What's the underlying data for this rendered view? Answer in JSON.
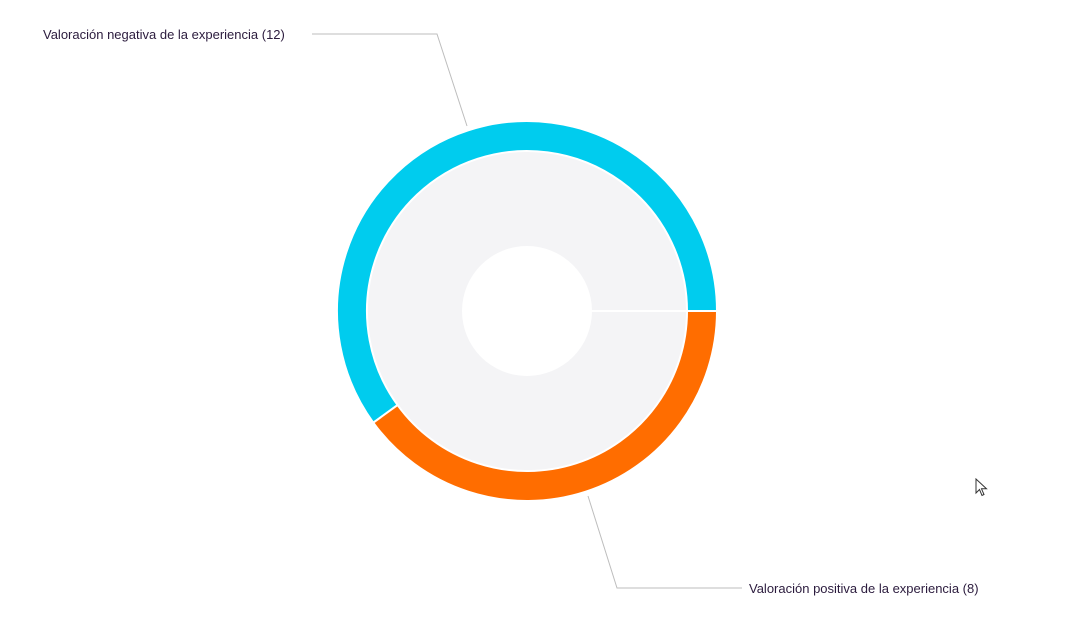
{
  "chart_data": {
    "type": "pie",
    "variant": "donut",
    "title": "",
    "slices": [
      {
        "name": "Valoración negativa de la experiencia",
        "value": 12,
        "label": "Valoración negativa de la experiencia (12)",
        "color": "#00ccee"
      },
      {
        "name": "Valoración positiva de la experiencia",
        "value": 8,
        "label": "Valoración positiva de la experiencia (8)",
        "color": "#ff6d00"
      }
    ],
    "start_angle": "3 o'clock, counter-clockwise",
    "inner_background": "#f4f4f6",
    "legend": "none"
  },
  "colors": {
    "leader_line": "#bdbdbd",
    "label_text": "#2b1b3d",
    "hole": "#ffffff"
  }
}
